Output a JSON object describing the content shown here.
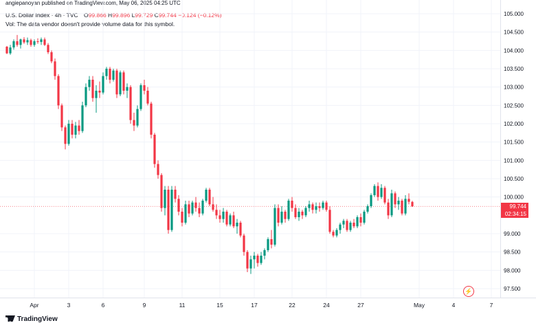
{
  "header": {
    "published": "angiepanoyan published on TradingView.com, May 06, 2025 04:25 UTC",
    "symbol": "U.S. Dollar Index · 4h · TVC",
    "open_label": "O",
    "open": "99.866",
    "high_label": "H",
    "high": "99.896",
    "low_label": "L",
    "low": "99.729",
    "close_label": "C",
    "close": "99.744",
    "change": "−0.124 (−0.12%)",
    "volume_note": "Vol: The data vendor doesn't provide volume data for this symbol."
  },
  "price_tag": {
    "price": "99.744",
    "countdown": "02:34:15"
  },
  "branding": {
    "name": "TradingView"
  },
  "colors": {
    "up": "#089981",
    "down": "#f23645",
    "grid": "#f0f3fa",
    "text": "#131722",
    "price_line": "#f23645"
  },
  "chart_data": {
    "type": "candlestick",
    "title": "U.S. Dollar Index · 4h · TVC",
    "ylim": [
      97.4,
      105.2
    ],
    "y_ticks": [
      "105.000",
      "104.500",
      "104.000",
      "103.500",
      "103.000",
      "102.500",
      "102.000",
      "101.500",
      "101.000",
      "100.500",
      "100.000",
      "99.000",
      "98.500",
      "98.000",
      "97.500"
    ],
    "x_ticks": [
      {
        "label": "Apr",
        "index": 8
      },
      {
        "label": "3",
        "index": 18
      },
      {
        "label": "6",
        "index": 28
      },
      {
        "label": "9",
        "index": 40
      },
      {
        "label": "11",
        "index": 51
      },
      {
        "label": "15",
        "index": 62
      },
      {
        "label": "17",
        "index": 72
      },
      {
        "label": "22",
        "index": 83
      },
      {
        "label": "24",
        "index": 93
      },
      {
        "label": "27",
        "index": 103
      },
      {
        "label": "May",
        "index": 120
      },
      {
        "label": "4",
        "index": 130
      },
      {
        "label": "7",
        "index": 141
      }
    ],
    "last_price": 99.744,
    "candles": [
      [
        104.1,
        104.12,
        103.9,
        103.92
      ],
      [
        103.92,
        104.15,
        103.88,
        104.08
      ],
      [
        104.08,
        104.3,
        104.02,
        104.25
      ],
      [
        104.25,
        104.42,
        104.1,
        104.15
      ],
      [
        104.15,
        104.32,
        104.05,
        104.3
      ],
      [
        104.3,
        104.36,
        104.18,
        104.22
      ],
      [
        104.22,
        104.35,
        104.15,
        104.28
      ],
      [
        104.28,
        104.32,
        104.1,
        104.15
      ],
      [
        104.15,
        104.3,
        104.1,
        104.25
      ],
      [
        104.25,
        104.33,
        104.18,
        104.23
      ],
      [
        104.23,
        104.35,
        104.15,
        104.3
      ],
      [
        104.3,
        104.35,
        104.12,
        104.15
      ],
      [
        104.15,
        104.2,
        103.9,
        103.95
      ],
      [
        103.95,
        104.0,
        103.65,
        103.7
      ],
      [
        103.7,
        103.78,
        103.2,
        103.3
      ],
      [
        103.3,
        103.35,
        102.4,
        102.5
      ],
      [
        102.5,
        102.55,
        101.8,
        101.9
      ],
      [
        101.9,
        101.95,
        101.3,
        101.45
      ],
      [
        101.45,
        102.1,
        101.4,
        102.0
      ],
      [
        102.0,
        102.1,
        101.6,
        101.7
      ],
      [
        101.7,
        102.05,
        101.6,
        101.95
      ],
      [
        101.95,
        102.1,
        101.7,
        101.8
      ],
      [
        101.8,
        102.6,
        101.75,
        102.5
      ],
      [
        102.5,
        103.1,
        102.45,
        103.0
      ],
      [
        103.0,
        103.3,
        102.9,
        103.2
      ],
      [
        103.2,
        103.3,
        102.6,
        102.7
      ],
      [
        102.7,
        103.05,
        102.3,
        102.9
      ],
      [
        102.9,
        103.15,
        102.7,
        102.85
      ],
      [
        102.85,
        103.4,
        102.8,
        103.3
      ],
      [
        103.3,
        103.55,
        103.2,
        103.5
      ],
      [
        103.5,
        103.55,
        103.1,
        103.2
      ],
      [
        103.2,
        103.5,
        103.15,
        103.45
      ],
      [
        103.45,
        103.5,
        102.7,
        102.8
      ],
      [
        102.8,
        103.45,
        102.75,
        103.4
      ],
      [
        103.4,
        103.45,
        102.8,
        102.9
      ],
      [
        102.9,
        103.1,
        102.7,
        103.0
      ],
      [
        103.0,
        103.05,
        102.0,
        102.1
      ],
      [
        102.1,
        102.3,
        101.8,
        101.95
      ],
      [
        101.95,
        102.5,
        101.9,
        102.4
      ],
      [
        102.4,
        103.1,
        102.35,
        103.05
      ],
      [
        103.05,
        103.2,
        102.8,
        102.9
      ],
      [
        102.9,
        103.0,
        102.5,
        102.55
      ],
      [
        102.55,
        102.6,
        101.6,
        101.7
      ],
      [
        101.7,
        101.75,
        100.8,
        100.9
      ],
      [
        100.9,
        101.0,
        100.5,
        100.6
      ],
      [
        100.6,
        100.65,
        99.6,
        99.7
      ],
      [
        99.7,
        100.3,
        99.5,
        100.2
      ],
      [
        100.2,
        100.3,
        99.0,
        99.1
      ],
      [
        99.1,
        100.3,
        99.05,
        100.2
      ],
      [
        100.2,
        100.3,
        99.85,
        99.95
      ],
      [
        99.95,
        100.05,
        99.5,
        99.6
      ],
      [
        99.6,
        99.7,
        99.2,
        99.3
      ],
      [
        99.3,
        99.9,
        99.25,
        99.8
      ],
      [
        99.8,
        99.9,
        99.45,
        99.55
      ],
      [
        99.55,
        99.9,
        99.5,
        99.85
      ],
      [
        99.85,
        100.0,
        99.6,
        99.7
      ],
      [
        99.7,
        99.85,
        99.45,
        99.55
      ],
      [
        99.55,
        99.95,
        99.5,
        99.9
      ],
      [
        99.9,
        100.25,
        99.85,
        100.2
      ],
      [
        100.2,
        100.25,
        99.75,
        99.8
      ],
      [
        99.8,
        100.0,
        99.6,
        99.65
      ],
      [
        99.65,
        99.8,
        99.4,
        99.5
      ],
      [
        99.5,
        99.65,
        99.3,
        99.4
      ],
      [
        99.4,
        99.7,
        99.3,
        99.6
      ],
      [
        99.6,
        99.65,
        99.2,
        99.25
      ],
      [
        99.25,
        99.55,
        99.2,
        99.5
      ],
      [
        99.5,
        99.6,
        99.15,
        99.2
      ],
      [
        99.2,
        99.4,
        99.0,
        99.3
      ],
      [
        99.3,
        99.35,
        98.9,
        98.95
      ],
      [
        98.95,
        99.0,
        98.4,
        98.5
      ],
      [
        98.5,
        98.55,
        97.95,
        98.05
      ],
      [
        98.05,
        98.4,
        97.9,
        98.3
      ],
      [
        98.3,
        98.5,
        98.05,
        98.4
      ],
      [
        98.4,
        98.45,
        98.1,
        98.2
      ],
      [
        98.2,
        98.5,
        98.15,
        98.4
      ],
      [
        98.4,
        98.6,
        98.3,
        98.55
      ],
      [
        98.55,
        98.9,
        98.5,
        98.85
      ],
      [
        98.85,
        99.1,
        98.6,
        98.7
      ],
      [
        98.7,
        99.8,
        98.65,
        99.7
      ],
      [
        99.7,
        99.8,
        99.2,
        99.3
      ],
      [
        99.3,
        99.75,
        99.25,
        99.6
      ],
      [
        99.6,
        99.65,
        99.3,
        99.4
      ],
      [
        99.4,
        99.95,
        99.35,
        99.9
      ],
      [
        99.9,
        100.0,
        99.6,
        99.7
      ],
      [
        99.7,
        99.8,
        99.4,
        99.45
      ],
      [
        99.45,
        99.7,
        99.35,
        99.6
      ],
      [
        99.6,
        99.65,
        99.4,
        99.5
      ],
      [
        99.5,
        99.75,
        99.45,
        99.7
      ],
      [
        99.7,
        99.9,
        99.6,
        99.8
      ],
      [
        99.8,
        99.85,
        99.55,
        99.65
      ],
      [
        99.65,
        99.85,
        99.55,
        99.75
      ],
      [
        99.75,
        99.85,
        99.6,
        99.7
      ],
      [
        99.7,
        99.9,
        99.65,
        99.85
      ],
      [
        99.85,
        99.9,
        99.6,
        99.65
      ],
      [
        99.65,
        99.75,
        99.0,
        99.05
      ],
      [
        99.05,
        99.1,
        98.9,
        98.95
      ],
      [
        98.95,
        99.15,
        98.9,
        99.1
      ],
      [
        99.1,
        99.3,
        99.0,
        99.25
      ],
      [
        99.25,
        99.4,
        99.15,
        99.35
      ],
      [
        99.35,
        99.4,
        99.05,
        99.1
      ],
      [
        99.1,
        99.35,
        99.05,
        99.3
      ],
      [
        99.3,
        99.4,
        99.15,
        99.2
      ],
      [
        99.2,
        99.5,
        99.15,
        99.45
      ],
      [
        99.45,
        99.55,
        99.2,
        99.3
      ],
      [
        99.3,
        99.65,
        99.25,
        99.6
      ],
      [
        99.6,
        99.8,
        99.55,
        99.75
      ],
      [
        99.75,
        100.1,
        99.7,
        100.05
      ],
      [
        100.05,
        100.35,
        100.0,
        100.3
      ],
      [
        100.3,
        100.4,
        99.9,
        100.0
      ],
      [
        100.0,
        100.35,
        99.95,
        100.25
      ],
      [
        100.25,
        100.3,
        99.8,
        99.85
      ],
      [
        99.85,
        99.95,
        99.4,
        99.5
      ],
      [
        99.5,
        100.2,
        99.45,
        100.1
      ],
      [
        100.1,
        100.15,
        99.7,
        99.8
      ],
      [
        99.8,
        100.0,
        99.65,
        99.9
      ],
      [
        99.9,
        99.95,
        99.5,
        99.55
      ],
      [
        99.55,
        100.05,
        99.5,
        99.95
      ],
      [
        99.95,
        100.1,
        99.8,
        99.87
      ],
      [
        99.866,
        99.896,
        99.729,
        99.744
      ]
    ]
  }
}
